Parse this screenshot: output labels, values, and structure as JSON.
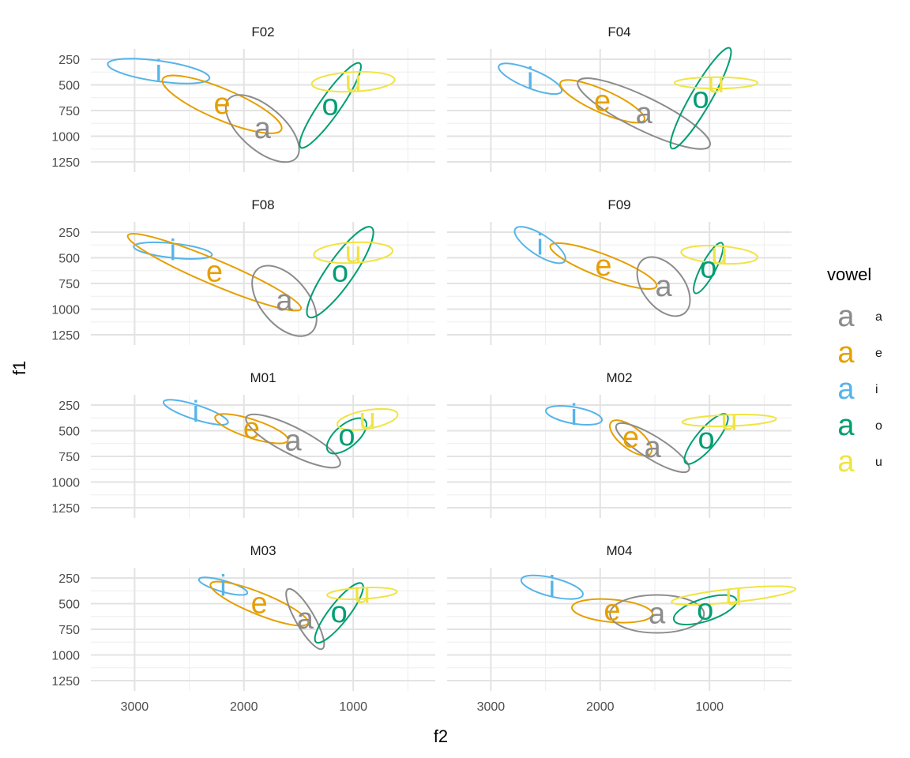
{
  "chart_data": {
    "type": "scatter",
    "xlabel": "f2",
    "ylabel": "f1",
    "xlim": [
      3400,
      250
    ],
    "x_reversed": true,
    "ylim": [
      1350,
      150
    ],
    "y_reversed": true,
    "x_ticks": [
      3000,
      2000,
      1000
    ],
    "x_tick_labels": [
      "3000",
      "2000",
      "1000"
    ],
    "y_ticks": [
      250,
      500,
      750,
      1000,
      1250
    ],
    "y_tick_labels": [
      "250",
      "500",
      "750",
      "1000",
      "1250"
    ],
    "grid": true,
    "legend": {
      "title": "vowel",
      "position": "right",
      "glyph": "a",
      "items": [
        {
          "key": "a",
          "label": "a",
          "color": "#8c8c8c"
        },
        {
          "key": "e",
          "label": "e",
          "color": "#e69f00"
        },
        {
          "key": "i",
          "label": "i",
          "color": "#56b4e9"
        },
        {
          "key": "o",
          "label": "o",
          "color": "#009e73"
        },
        {
          "key": "u",
          "label": "u",
          "color": "#f0e442"
        }
      ]
    },
    "panels": [
      {
        "speaker": "F02",
        "vowels": [
          {
            "vowel": "i",
            "f2": 2780,
            "f1": 365,
            "rx": 470,
            "ry": 100,
            "angle": 8
          },
          {
            "vowel": "e",
            "f2": 2200,
            "f1": 690,
            "rx": 590,
            "ry": 150,
            "angle": 23
          },
          {
            "vowel": "a",
            "f2": 1830,
            "f1": 925,
            "rx": 410,
            "ry": 210,
            "angle": 41
          },
          {
            "vowel": "o",
            "f2": 1210,
            "f1": 700,
            "rx": 470,
            "ry": 100,
            "angle": -55
          },
          {
            "vowel": "u",
            "f2": 1000,
            "f1": 470,
            "rx": 380,
            "ry": 95,
            "angle": -3
          }
        ]
      },
      {
        "speaker": "F04",
        "vowels": [
          {
            "vowel": "i",
            "f2": 2640,
            "f1": 440,
            "rx": 310,
            "ry": 90,
            "angle": 22
          },
          {
            "vowel": "e",
            "f2": 1980,
            "f1": 660,
            "rx": 420,
            "ry": 110,
            "angle": 24
          },
          {
            "vowel": "a",
            "f2": 1600,
            "f1": 780,
            "rx": 670,
            "ry": 160,
            "angle": 26
          },
          {
            "vowel": "o",
            "f2": 1080,
            "f1": 630,
            "rx": 530,
            "ry": 100,
            "angle": -60
          },
          {
            "vowel": "u",
            "f2": 940,
            "f1": 480,
            "rx": 380,
            "ry": 55,
            "angle": 0
          }
        ]
      },
      {
        "speaker": "F08",
        "vowels": [
          {
            "vowel": "i",
            "f2": 2650,
            "f1": 430,
            "rx": 360,
            "ry": 70,
            "angle": 6
          },
          {
            "vowel": "e",
            "f2": 2270,
            "f1": 640,
            "rx": 860,
            "ry": 120,
            "angle": 23
          },
          {
            "vowel": "a",
            "f2": 1630,
            "f1": 920,
            "rx": 380,
            "ry": 230,
            "angle": 50
          },
          {
            "vowel": "o",
            "f2": 1120,
            "f1": 640,
            "rx": 500,
            "ry": 130,
            "angle": -55
          },
          {
            "vowel": "u",
            "f2": 1000,
            "f1": 450,
            "rx": 360,
            "ry": 100,
            "angle": -3
          }
        ]
      },
      {
        "speaker": "F09",
        "vowels": [
          {
            "vowel": "i",
            "f2": 2550,
            "f1": 375,
            "rx": 270,
            "ry": 100,
            "angle": 33
          },
          {
            "vowel": "e",
            "f2": 1970,
            "f1": 580,
            "rx": 520,
            "ry": 110,
            "angle": 21
          },
          {
            "vowel": "a",
            "f2": 1420,
            "f1": 780,
            "rx": 310,
            "ry": 200,
            "angle": 52
          },
          {
            "vowel": "o",
            "f2": 1010,
            "f1": 600,
            "rx": 260,
            "ry": 70,
            "angle": -62
          },
          {
            "vowel": "u",
            "f2": 910,
            "f1": 470,
            "rx": 350,
            "ry": 85,
            "angle": 4
          }
        ]
      },
      {
        "speaker": "M01",
        "vowels": [
          {
            "vowel": "i",
            "f2": 2440,
            "f1": 320,
            "rx": 310,
            "ry": 70,
            "angle": 18
          },
          {
            "vowel": "e",
            "f2": 1930,
            "f1": 480,
            "rx": 350,
            "ry": 90,
            "angle": 18
          },
          {
            "vowel": "a",
            "f2": 1550,
            "f1": 600,
            "rx": 480,
            "ry": 130,
            "angle": 27
          },
          {
            "vowel": "o",
            "f2": 1060,
            "f1": 550,
            "rx": 220,
            "ry": 110,
            "angle": -40
          },
          {
            "vowel": "u",
            "f2": 870,
            "f1": 390,
            "rx": 280,
            "ry": 90,
            "angle": -10
          }
        ]
      },
      {
        "speaker": "M02",
        "vowels": [
          {
            "vowel": "i",
            "f2": 2240,
            "f1": 350,
            "rx": 260,
            "ry": 80,
            "angle": 10
          },
          {
            "vowel": "e",
            "f2": 1720,
            "f1": 570,
            "rx": 230,
            "ry": 105,
            "angle": 38
          },
          {
            "vowel": "a",
            "f2": 1520,
            "f1": 665,
            "rx": 390,
            "ry": 110,
            "angle": 32
          },
          {
            "vowel": "o",
            "f2": 1030,
            "f1": 580,
            "rx": 290,
            "ry": 95,
            "angle": -50
          },
          {
            "vowel": "u",
            "f2": 820,
            "f1": 400,
            "rx": 430,
            "ry": 55,
            "angle": -2
          }
        ]
      },
      {
        "speaker": "M03",
        "vowels": [
          {
            "vowel": "i",
            "f2": 2190,
            "f1": 330,
            "rx": 230,
            "ry": 55,
            "angle": 16
          },
          {
            "vowel": "e",
            "f2": 1860,
            "f1": 500,
            "rx": 480,
            "ry": 105,
            "angle": 22
          },
          {
            "vowel": "a",
            "f2": 1440,
            "f1": 650,
            "rx": 315,
            "ry": 90,
            "angle": 60
          },
          {
            "vowel": "o",
            "f2": 1130,
            "f1": 590,
            "rx": 340,
            "ry": 95,
            "angle": -52
          },
          {
            "vowel": "u",
            "f2": 920,
            "f1": 400,
            "rx": 320,
            "ry": 55,
            "angle": -3
          }
        ]
      },
      {
        "speaker": "M04",
        "vowels": [
          {
            "vowel": "i",
            "f2": 2440,
            "f1": 340,
            "rx": 290,
            "ry": 90,
            "angle": 14
          },
          {
            "vowel": "e",
            "f2": 1890,
            "f1": 570,
            "rx": 370,
            "ry": 110,
            "angle": 5
          },
          {
            "vowel": "a",
            "f2": 1480,
            "f1": 600,
            "rx": 430,
            "ry": 185,
            "angle": 0
          },
          {
            "vowel": "o",
            "f2": 1040,
            "f1": 560,
            "rx": 300,
            "ry": 110,
            "angle": -18
          },
          {
            "vowel": "u",
            "f2": 780,
            "f1": 420,
            "rx": 570,
            "ry": 65,
            "angle": -6
          }
        ]
      }
    ]
  }
}
